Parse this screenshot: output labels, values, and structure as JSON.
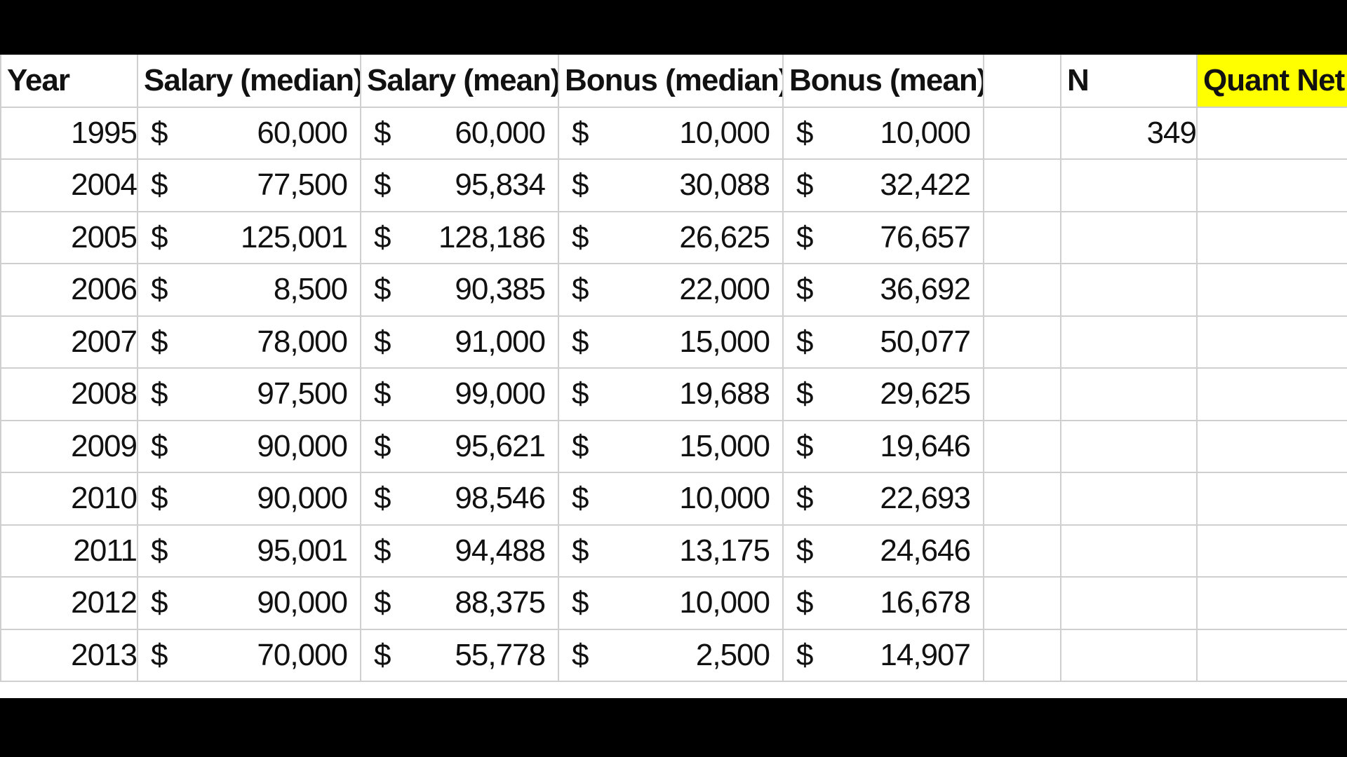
{
  "headers": [
    "Year",
    "Salary (median)",
    "Salary (mean)",
    "Bonus (median)",
    "Bonus (mean)",
    "",
    "N",
    "Quant Net"
  ],
  "currency_symbol": "$",
  "highlight_color": "#ffff00",
  "rows": [
    {
      "year": "1995",
      "salary_median": "60,000",
      "salary_mean": "60,000",
      "bonus_median": "10,000",
      "bonus_mean": "10,000",
      "n": "349"
    },
    {
      "year": "2004",
      "salary_median": "77,500",
      "salary_mean": "95,834",
      "bonus_median": "30,088",
      "bonus_mean": "32,422",
      "n": ""
    },
    {
      "year": "2005",
      "salary_median": "125,001",
      "salary_mean": "128,186",
      "bonus_median": "26,625",
      "bonus_mean": "76,657",
      "n": ""
    },
    {
      "year": "2006",
      "salary_median": "8,500",
      "salary_mean": "90,385",
      "bonus_median": "22,000",
      "bonus_mean": "36,692",
      "n": ""
    },
    {
      "year": "2007",
      "salary_median": "78,000",
      "salary_mean": "91,000",
      "bonus_median": "15,000",
      "bonus_mean": "50,077",
      "n": ""
    },
    {
      "year": "2008",
      "salary_median": "97,500",
      "salary_mean": "99,000",
      "bonus_median": "19,688",
      "bonus_mean": "29,625",
      "n": ""
    },
    {
      "year": "2009",
      "salary_median": "90,000",
      "salary_mean": "95,621",
      "bonus_median": "15,000",
      "bonus_mean": "19,646",
      "n": ""
    },
    {
      "year": "2010",
      "salary_median": "90,000",
      "salary_mean": "98,546",
      "bonus_median": "10,000",
      "bonus_mean": "22,693",
      "n": ""
    },
    {
      "year": "2011",
      "salary_median": "95,001",
      "salary_mean": "94,488",
      "bonus_median": "13,175",
      "bonus_mean": "24,646",
      "n": ""
    },
    {
      "year": "2012",
      "salary_median": "90,000",
      "salary_mean": "88,375",
      "bonus_median": "10,000",
      "bonus_mean": "16,678",
      "n": ""
    },
    {
      "year": "2013",
      "salary_median": "70,000",
      "salary_mean": "55,778",
      "bonus_median": "2,500",
      "bonus_mean": "14,907",
      "n": ""
    }
  ]
}
